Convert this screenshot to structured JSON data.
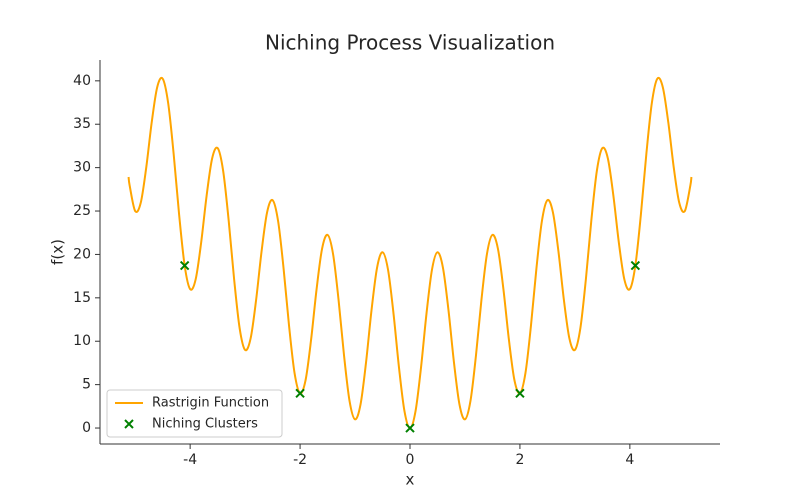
{
  "chart_data": {
    "type": "line",
    "title": "Niching Process Visualization",
    "x_label": "x",
    "y_label": "f(x)",
    "xlim": [
      -5.64,
      5.64
    ],
    "ylim": [
      -1.84,
      42.4
    ],
    "xticks": [
      -4,
      -2,
      0,
      2,
      4
    ],
    "yticks": [
      0,
      5,
      10,
      15,
      20,
      25,
      30,
      35,
      40
    ],
    "legend": "lower left",
    "series": [
      {
        "name": "Rastrigin Function",
        "type": "line",
        "color": "#ffa500",
        "x": [
          -5.12,
          -5.1,
          -5.0,
          -4.9,
          -4.8,
          -4.7,
          -4.6,
          -4.5,
          -4.4,
          -4.3,
          -4.2,
          -4.1,
          -4.0,
          -3.9,
          -3.8,
          -3.7,
          -3.6,
          -3.5,
          -3.4,
          -3.3,
          -3.2,
          -3.1,
          -3.0,
          -2.9,
          -2.8,
          -2.7,
          -2.6,
          -2.5,
          -2.4,
          -2.3,
          -2.2,
          -2.1,
          -2.0,
          -1.9,
          -1.8,
          -1.7,
          -1.6,
          -1.5,
          -1.4,
          -1.3,
          -1.2,
          -1.1,
          -1.0,
          -0.9,
          -0.8,
          -0.7,
          -0.6,
          -0.5,
          -0.4,
          -0.3,
          -0.2,
          -0.1,
          0,
          0.1,
          0.2,
          0.3,
          0.4,
          0.5,
          0.6,
          0.7,
          0.8,
          0.9,
          1.0,
          1.1,
          1.2,
          1.3,
          1.4,
          1.5,
          1.6,
          1.7,
          1.8,
          1.9,
          2.0,
          2.1,
          2.2,
          2.3,
          2.4,
          2.5,
          2.6,
          2.7,
          2.8,
          2.9,
          3.0,
          3.1,
          3.2,
          3.3,
          3.4,
          3.5,
          3.6,
          3.7,
          3.8,
          3.9,
          4.0,
          4.1,
          4.2,
          4.3,
          4.4,
          4.5,
          4.6,
          4.7,
          4.8,
          4.9,
          5.0,
          5.1,
          5.12
        ],
        "values": [
          28.92,
          27.92,
          25,
          25.92,
          29.95,
          35.18,
          39.25,
          40.25,
          37.45,
          31.58,
          24.55,
          18.72,
          16,
          17.12,
          21.35,
          26.78,
          31.05,
          32.25,
          29.65,
          23.98,
          17.15,
          11.52,
          9,
          10.32,
          14.75,
          20.38,
          24.85,
          26.25,
          23.85,
          18.38,
          11.75,
          6.32,
          4,
          5.52,
          10.15,
          15.98,
          20.65,
          22.25,
          20.05,
          14.78,
          8.35,
          3.12,
          1,
          2.72,
          7.55,
          13.58,
          18.45,
          20.25,
          18.25,
          13.18,
          6.95,
          1.92,
          0,
          1.92,
          6.95,
          13.18,
          18.25,
          20.25,
          18.45,
          13.58,
          7.55,
          2.72,
          1,
          3.12,
          8.35,
          14.78,
          20.05,
          22.25,
          20.65,
          15.98,
          10.15,
          5.52,
          4,
          6.32,
          11.75,
          18.38,
          23.85,
          26.25,
          24.85,
          20.38,
          14.75,
          10.32,
          9,
          11.52,
          17.15,
          23.98,
          29.65,
          32.25,
          31.05,
          26.78,
          21.35,
          17.12,
          16,
          18.72,
          24.55,
          31.58,
          37.45,
          40.25,
          39.25,
          35.18,
          29.95,
          25.92,
          25,
          27.92,
          28.92
        ]
      },
      {
        "name": "Niching Clusters",
        "type": "scatter",
        "color": "#008000",
        "x": [
          -4.1,
          -2,
          0,
          2,
          4.1
        ],
        "values": [
          18.72,
          4,
          0,
          4,
          18.72
        ]
      }
    ]
  }
}
